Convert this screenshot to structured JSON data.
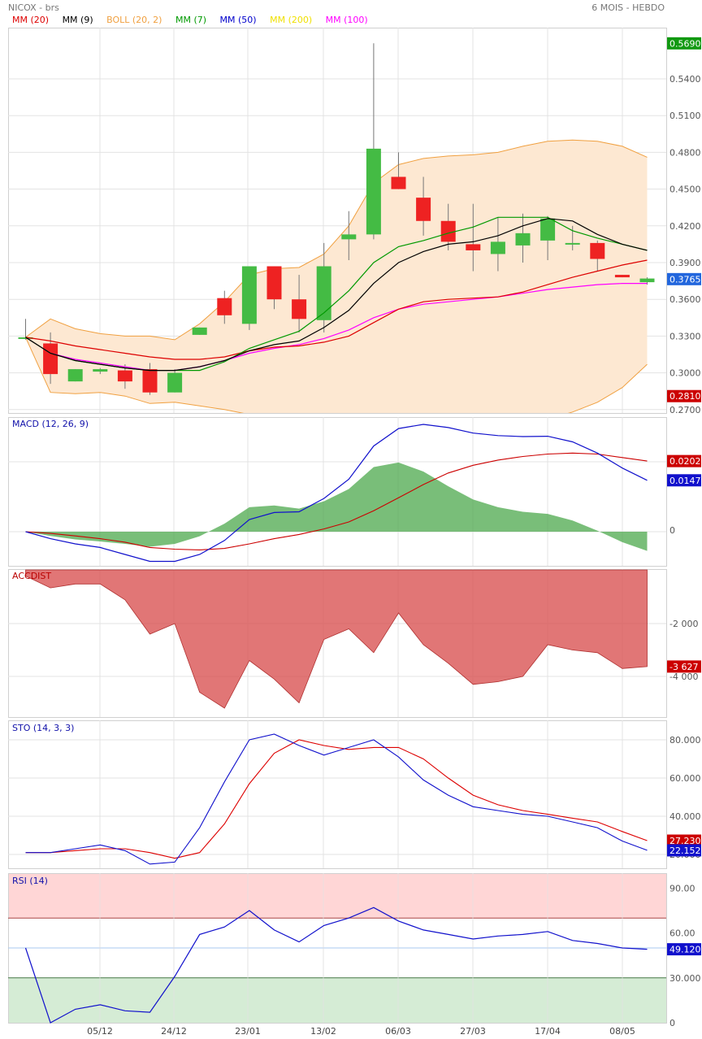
{
  "header": {
    "symbol": "NICOX - brs",
    "period": "6 MOIS - HEBDO"
  },
  "legend": [
    {
      "label": "MM (20)",
      "color": "#dd0000"
    },
    {
      "label": "MM (9)",
      "color": "#000000"
    },
    {
      "label": "BOLL (20, 2)",
      "color": "#f0a040"
    },
    {
      "label": "MM (7)",
      "color": "#009900"
    },
    {
      "label": "MM (50)",
      "color": "#0000cc"
    },
    {
      "label": "MM (200)",
      "color": "#f0e000"
    },
    {
      "label": "MM (100)",
      "color": "#ff00ff"
    }
  ],
  "colors": {
    "up": "#44bb44",
    "down": "#ee2222",
    "boll_fill": "#fde8d2",
    "boll_line": "#f0a040",
    "macd_fill": "#4ca84c",
    "accdist_fill": "#d95050",
    "rsi_over": "#ffd6d6",
    "rsi_under": "#d5ecd5"
  },
  "chart_data": {
    "type": "candlestick",
    "x_labels": [
      "05/12",
      "24/12",
      "23/01",
      "13/02",
      "06/03",
      "27/03",
      "17/04",
      "08/05"
    ],
    "price": {
      "y_ticks": [
        "0.5400",
        "0.5100",
        "0.4800",
        "0.4500",
        "0.4200",
        "0.3900",
        "0.3600",
        "0.3300",
        "0.3000",
        "0.2700"
      ],
      "badges": [
        {
          "label": "0.5690",
          "value": 0.569,
          "color": "#119911"
        },
        {
          "label": "0.3765",
          "value": 0.3765,
          "color": "#2266dd"
        },
        {
          "label": "0.2810",
          "value": 0.281,
          "color": "#cc0000"
        }
      ],
      "candles": [
        {
          "o": 0.329,
          "h": 0.344,
          "l": 0.327,
          "c": 0.329
        },
        {
          "o": 0.324,
          "h": 0.333,
          "l": 0.291,
          "c": 0.299
        },
        {
          "o": 0.293,
          "h": 0.303,
          "l": 0.293,
          "c": 0.303
        },
        {
          "o": 0.301,
          "h": 0.304,
          "l": 0.299,
          "c": 0.303
        },
        {
          "o": 0.302,
          "h": 0.307,
          "l": 0.287,
          "c": 0.293
        },
        {
          "o": 0.303,
          "h": 0.308,
          "l": 0.282,
          "c": 0.284
        },
        {
          "o": 0.284,
          "h": 0.303,
          "l": 0.284,
          "c": 0.3
        },
        {
          "o": 0.331,
          "h": 0.337,
          "l": 0.331,
          "c": 0.337
        },
        {
          "o": 0.361,
          "h": 0.367,
          "l": 0.34,
          "c": 0.347
        },
        {
          "o": 0.34,
          "h": 0.387,
          "l": 0.335,
          "c": 0.387
        },
        {
          "o": 0.387,
          "h": 0.387,
          "l": 0.352,
          "c": 0.36
        },
        {
          "o": 0.36,
          "h": 0.38,
          "l": 0.333,
          "c": 0.344
        },
        {
          "o": 0.343,
          "h": 0.406,
          "l": 0.333,
          "c": 0.387
        },
        {
          "o": 0.409,
          "h": 0.432,
          "l": 0.392,
          "c": 0.413
        },
        {
          "o": 0.413,
          "h": 0.569,
          "l": 0.409,
          "c": 0.483
        },
        {
          "o": 0.46,
          "h": 0.48,
          "l": 0.45,
          "c": 0.45
        },
        {
          "o": 0.443,
          "h": 0.46,
          "l": 0.412,
          "c": 0.424
        },
        {
          "o": 0.424,
          "h": 0.438,
          "l": 0.4,
          "c": 0.407
        },
        {
          "o": 0.405,
          "h": 0.438,
          "l": 0.383,
          "c": 0.4
        },
        {
          "o": 0.397,
          "h": 0.427,
          "l": 0.383,
          "c": 0.407
        },
        {
          "o": 0.404,
          "h": 0.43,
          "l": 0.39,
          "c": 0.414
        },
        {
          "o": 0.408,
          "h": 0.428,
          "l": 0.392,
          "c": 0.426
        },
        {
          "o": 0.406,
          "h": 0.42,
          "l": 0.4,
          "c": 0.406
        },
        {
          "o": 0.406,
          "h": 0.408,
          "l": 0.383,
          "c": 0.393
        },
        {
          "o": 0.38,
          "h": 0.38,
          "l": 0.378,
          "c": 0.378
        },
        {
          "o": 0.374,
          "h": 0.378,
          "l": 0.372,
          "c": 0.377
        }
      ],
      "boll_upper": [
        0.329,
        0.344,
        0.336,
        0.332,
        0.33,
        0.33,
        0.327,
        0.34,
        0.358,
        0.38,
        0.385,
        0.386,
        0.397,
        0.42,
        0.455,
        0.47,
        0.475,
        0.477,
        0.478,
        0.48,
        0.485,
        0.489,
        0.49,
        0.489,
        0.485,
        0.476
      ],
      "boll_lower": [
        0.329,
        0.284,
        0.283,
        0.284,
        0.281,
        0.275,
        0.276,
        0.273,
        0.27,
        0.266,
        0.262,
        0.258,
        0.253,
        0.245,
        0.238,
        0.233,
        0.234,
        0.24,
        0.245,
        0.25,
        0.256,
        0.262,
        0.268,
        0.276,
        0.288,
        0.307
      ],
      "mm20": [
        0.329,
        0.326,
        0.322,
        0.319,
        0.316,
        0.313,
        0.311,
        0.311,
        0.313,
        0.318,
        0.321,
        0.322,
        0.325,
        0.33,
        0.341,
        0.352,
        0.358,
        0.36,
        0.361,
        0.362,
        0.366,
        0.372,
        0.378,
        0.383,
        0.388,
        0.392
      ],
      "mm9": [
        0.329,
        0.316,
        0.31,
        0.307,
        0.304,
        0.302,
        0.302,
        0.305,
        0.31,
        0.318,
        0.323,
        0.326,
        0.337,
        0.351,
        0.373,
        0.39,
        0.399,
        0.405,
        0.407,
        0.412,
        0.42,
        0.426,
        0.424,
        0.413,
        0.405,
        0.4
      ],
      "mm7": [
        0.329,
        0.316,
        0.31,
        0.307,
        0.304,
        0.302,
        0.302,
        0.302,
        0.309,
        0.32,
        0.327,
        0.334,
        0.349,
        0.367,
        0.39,
        0.403,
        0.408,
        0.414,
        0.419,
        0.427,
        0.427,
        0.427,
        0.416,
        0.41,
        0.405,
        0.4
      ],
      "mm100": [
        0.329,
        0.316,
        0.311,
        0.308,
        0.305,
        0.302,
        0.302,
        0.305,
        0.31,
        0.316,
        0.32,
        0.323,
        0.328,
        0.335,
        0.345,
        0.352,
        0.356,
        0.358,
        0.36,
        0.362,
        0.365,
        0.368,
        0.37,
        0.372,
        0.373,
        0.373
      ]
    },
    "macd": {
      "title": "MACD (12, 26, 9)",
      "zero_label": "0",
      "badges": [
        {
          "label": "0.0202",
          "value": 0.0202,
          "color": "#cc0000"
        },
        {
          "label": "0.0147",
          "value": 0.0147,
          "color": "#1111cc"
        }
      ],
      "macd_line": [
        0.0,
        -0.002,
        -0.0035,
        -0.0045,
        -0.0065,
        -0.0085,
        -0.0085,
        -0.0065,
        -0.0025,
        0.0035,
        0.0055,
        0.0057,
        0.0095,
        0.015,
        0.0245,
        0.0295,
        0.0307,
        0.0298,
        0.0282,
        0.0275,
        0.0272,
        0.0273,
        0.0257,
        0.0225,
        0.0182,
        0.0147
      ],
      "signal_line": [
        0.0,
        -0.0005,
        -0.0012,
        -0.002,
        -0.003,
        -0.0045,
        -0.005,
        -0.0052,
        -0.0048,
        -0.0035,
        -0.002,
        -0.0008,
        0.0008,
        0.0028,
        0.006,
        0.0097,
        0.0135,
        0.0168,
        0.019,
        0.0205,
        0.0215,
        0.0222,
        0.0225,
        0.0222,
        0.0212,
        0.0202
      ],
      "histogram": [
        0.0,
        -0.0012,
        -0.0022,
        -0.0028,
        -0.0035,
        -0.0043,
        -0.0035,
        -0.0013,
        0.0023,
        0.007,
        0.0075,
        0.0066,
        0.0087,
        0.0122,
        0.0185,
        0.0198,
        0.0172,
        0.013,
        0.0092,
        0.007,
        0.0057,
        0.0051,
        0.0032,
        0.0003,
        -0.003,
        -0.0055
      ]
    },
    "accdist": {
      "title": "ACCDIST",
      "y_ticks": [
        "-2 000",
        "-4 000"
      ],
      "badge": {
        "label": "-3 627",
        "value": -3627,
        "color": "#cc0000"
      },
      "values": [
        -200,
        -650,
        -500,
        -500,
        -1100,
        -2400,
        -2000,
        -4600,
        -5200,
        -3400,
        -4100,
        -5000,
        -2600,
        -2200,
        -3100,
        -1600,
        -2800,
        -3500,
        -4300,
        -4200,
        -4000,
        -2800,
        -3000,
        -3100,
        -3700,
        -3627
      ]
    },
    "sto": {
      "title": "STO (14, 3, 3)",
      "y_ticks": [
        "80.000",
        "60.000",
        "40.000",
        "20.000"
      ],
      "badges": [
        {
          "label": "27.230",
          "value": 27.23,
          "color": "#cc0000"
        },
        {
          "label": "22.152",
          "value": 22.152,
          "color": "#1111cc"
        }
      ],
      "k_line": [
        21,
        21,
        23,
        25,
        22,
        15,
        16,
        34,
        58,
        80,
        83,
        77,
        72,
        76,
        80,
        71,
        59,
        51,
        45,
        43,
        41,
        40,
        37,
        34,
        27,
        22.152
      ],
      "d_line": [
        21,
        21,
        22,
        23,
        23,
        21,
        18,
        21,
        36,
        57,
        73,
        80,
        77,
        75,
        76,
        76,
        70,
        60,
        51,
        46,
        43,
        41,
        39,
        37,
        32,
        27.23
      ]
    },
    "rsi": {
      "title": "RSI (14)",
      "y_ticks": [
        "90.00",
        "60.00",
        "30.000",
        "0"
      ],
      "badge": {
        "label": "49.120",
        "value": 49.12,
        "color": "#1111cc"
      },
      "overbought": 70,
      "oversold": 30,
      "values": [
        50,
        0,
        9,
        12,
        8,
        7,
        31,
        59,
        64,
        75,
        62,
        54,
        65,
        70,
        77,
        68,
        62,
        59,
        56,
        58,
        59,
        61,
        55,
        53,
        50,
        49.12
      ]
    }
  }
}
